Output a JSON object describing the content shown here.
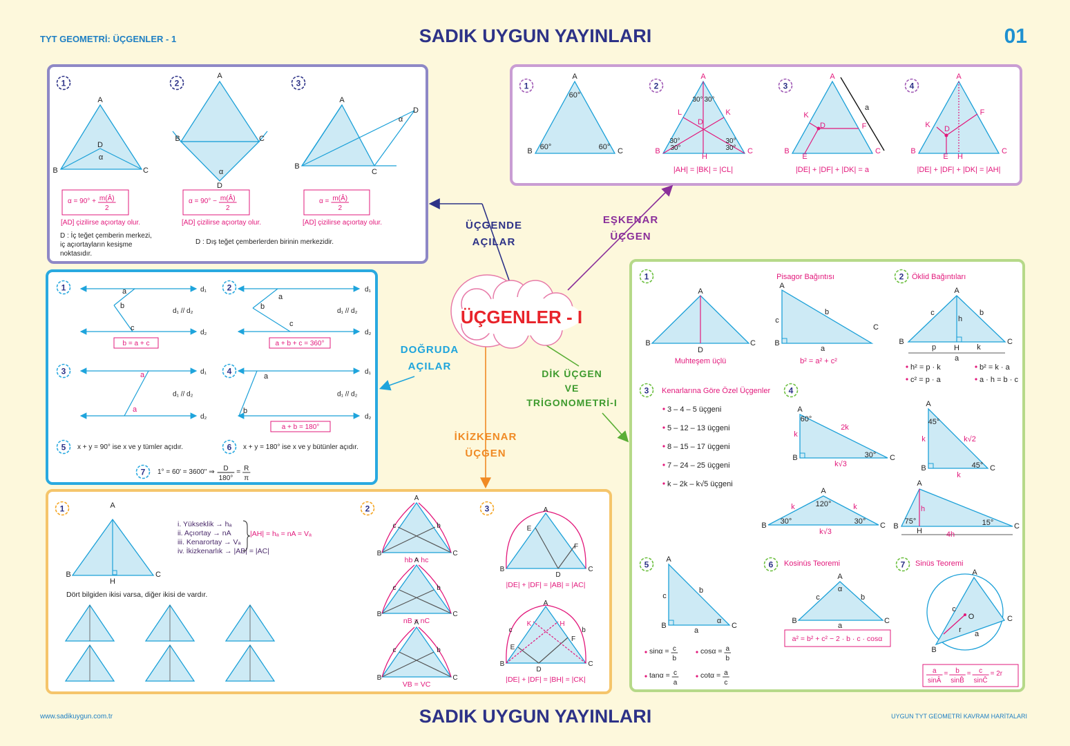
{
  "header": {
    "subject": "TYT GEOMETRİ: ÜÇGENLER - 1",
    "publisher": "SADIK  UYGUN  YAYINLARI",
    "page": "01"
  },
  "footer": {
    "website": "www.sadikuygun.com.tr",
    "publisher": "SADIK  UYGUN  YAYINLARI",
    "series": "UYGUN TYT GEOMETRİ KAVRAM HARİTALARI"
  },
  "hub": "ÜÇGENLER - I",
  "branches": {
    "angles": [
      "ÜÇGENDE",
      "AÇILAR"
    ],
    "equilateral": [
      "EŞKENAR",
      "ÜÇGEN"
    ],
    "lines": [
      "DOĞRUDA",
      "AÇILAR"
    ],
    "isosceles": [
      "İKİZKENAR",
      "ÜÇGEN"
    ],
    "right": [
      "DİK ÜÇGEN",
      "VE",
      "TRİGONOMETRİ-I"
    ]
  },
  "angles": {
    "items": [
      {
        "number": "1",
        "vertices": [
          "A",
          "B",
          "C",
          "D"
        ],
        "angle": "α",
        "lhs": "α = 90° +",
        "num": "m(Â)",
        "den": "2",
        "note": "[AD] çizilirse açıortay olur."
      },
      {
        "number": "2",
        "vertices": [
          "A",
          "B",
          "C",
          "D"
        ],
        "angle": "α",
        "lhs": "α = 90° −",
        "num": "m(Â)",
        "den": "2",
        "note": "[AD] çizilirse açıortay olur."
      },
      {
        "number": "3",
        "vertices": [
          "A",
          "B",
          "C",
          "D"
        ],
        "angle": "α",
        "lhs": "α =",
        "num": "m(Â)",
        "den": "2",
        "note": "[AD] çizilirse açıortay olur."
      }
    ],
    "desc1": [
      "D : İç teğet çemberin merkezi,",
      "iç açıortayların kesişme",
      "noktasıdır."
    ],
    "desc3": "D : Dış teğet çemberlerden birinin merkezidir."
  },
  "equilateral": {
    "items": [
      {
        "number": "1",
        "vertices": [
          "A",
          "B",
          "C"
        ],
        "angles": [
          "60°",
          "60°",
          "60°"
        ]
      },
      {
        "number": "2",
        "vertices": [
          "A",
          "B",
          "C",
          "L",
          "K",
          "D",
          "H"
        ],
        "angles": [
          "30°",
          "30°",
          "30°",
          "30°",
          "30°",
          "30°"
        ],
        "caption": "|AH| = |BK| = |CL|"
      },
      {
        "number": "3",
        "vertices": [
          "A",
          "B",
          "C",
          "K",
          "D",
          "F",
          "E"
        ],
        "side": "a",
        "caption": "|DE| + |DF| + |DK| = a"
      },
      {
        "number": "4",
        "vertices": [
          "A",
          "B",
          "C",
          "K",
          "D",
          "F",
          "E",
          "H"
        ],
        "caption": "|DE| + |DF| + |DK| = |AH|"
      }
    ]
  },
  "lines": {
    "items": [
      {
        "number": "1",
        "lines": [
          "d₁",
          "d₂"
        ],
        "parallel": "d₁ // d₂",
        "angles": [
          "a",
          "b",
          "c"
        ],
        "formula": "b = a + c"
      },
      {
        "number": "2",
        "lines": [
          "d₁",
          "d₂"
        ],
        "parallel": "d₁ // d₂",
        "angles": [
          "a",
          "b",
          "c"
        ],
        "formula": "a + b + c = 360°"
      },
      {
        "number": "3",
        "lines": [
          "d₁",
          "d₂"
        ],
        "parallel": "d₁ // d₂",
        "angles": [
          "a",
          "a"
        ]
      },
      {
        "number": "4",
        "lines": [
          "d₁",
          "d₂"
        ],
        "parallel": "d₁ // d₂",
        "angles": [
          "a",
          "b"
        ],
        "formula": "a + b = 180°"
      },
      {
        "number": "5",
        "text": "x + y = 90° ise x ve y tümler açıdır."
      },
      {
        "number": "6",
        "text": "x + y = 180° ise x ve y bütünler açıdır."
      },
      {
        "number": "7",
        "text": "1° = 60' = 3600'' ⇒",
        "f1": [
          "D",
          "180°"
        ],
        "eq": "=",
        "f2": [
          "R",
          "π"
        ]
      }
    ]
  },
  "isosceles": {
    "items": [
      {
        "number": "1",
        "vertices": [
          "A",
          "B",
          "C",
          "H"
        ],
        "properties": [
          "i. Yükseklik → hₐ",
          "ii. Açıortay → nA",
          "iii. Kenarortay → Vₐ",
          "iv. İkizkenarlık → |AB| = |AC|"
        ],
        "result": "|AH| = hₐ = nA = Vₐ",
        "note": "Dört bilgiden ikisi varsa, diğer ikisi de vardır."
      },
      {
        "number": "2",
        "vertices": [
          "A",
          "B",
          "C"
        ],
        "sides": [
          "c",
          "b"
        ],
        "captions": [
          "hb = hc",
          "nB = nC",
          "VB = VC"
        ]
      },
      {
        "number": "3",
        "vertices": [
          "A",
          "B",
          "C",
          "D",
          "E",
          "F",
          "K",
          "H"
        ],
        "sides": [
          "c",
          "b"
        ],
        "captions": [
          "|DE| + |DF| = |AB| = |AC|",
          "|DE| + |DF| = |BH| = |CK|"
        ]
      }
    ]
  },
  "right": {
    "item1": {
      "number": "1",
      "vertices": [
        "A",
        "B",
        "C",
        "D"
      ],
      "caption": "Muhteşem üçlü"
    },
    "pythagoras": {
      "title": "Pisagor Bağıntısı",
      "vertices": [
        "A",
        "B",
        "C"
      ],
      "sides": [
        "c",
        "b",
        "a"
      ],
      "formula": "b² = a² + c²"
    },
    "item2": {
      "number": "2",
      "title": "Öklid Bağıntıları",
      "vertices": [
        "A",
        "B",
        "C",
        "H"
      ],
      "sides": [
        "c",
        "h",
        "b",
        "p",
        "k",
        "a"
      ],
      "formulas": [
        "h² = p · k",
        "b² = k · a",
        "c² = p · a",
        "a · h = b · c"
      ]
    },
    "item3": {
      "number": "3",
      "title": "Kenarlarına Göre Özel Üçgenler",
      "list": [
        "3 – 4 – 5 üçgeni",
        "5 – 12 – 13 üçgeni",
        "8 – 15 – 17 üçgeni",
        "7 – 24 – 25 üçgeni",
        "k – 2k – k√5 üçgeni"
      ]
    },
    "item4": {
      "number": "4",
      "t1": {
        "vertices": [
          "A",
          "B",
          "C"
        ],
        "labels": [
          "60°",
          "2k",
          "k",
          "30°",
          "k√3"
        ]
      },
      "t2": {
        "vertices": [
          "A",
          "B",
          "C"
        ],
        "labels": [
          "45°",
          "k",
          "k√2",
          "45°",
          "k"
        ]
      },
      "t3": {
        "vertices": [
          "A",
          "B",
          "C"
        ],
        "labels": [
          "120°",
          "k",
          "k",
          "30°",
          "30°",
          "k√3"
        ]
      },
      "t4": {
        "vertices": [
          "A",
          "B",
          "C",
          "H"
        ],
        "labels": [
          "h",
          "75°",
          "15°",
          "4h"
        ]
      }
    },
    "item5": {
      "number": "5",
      "vertices": [
        "A",
        "B",
        "C"
      ],
      "sides": [
        "c",
        "b",
        "a"
      ],
      "angle": "α",
      "ratios": [
        {
          "lhs": "sinα =",
          "num": "c",
          "den": "b"
        },
        {
          "lhs": "cosα =",
          "num": "a",
          "den": "b"
        },
        {
          "lhs": "tanα =",
          "num": "c",
          "den": "a"
        },
        {
          "lhs": "cotα =",
          "num": "a",
          "den": "c"
        }
      ]
    },
    "item6": {
      "number": "6",
      "title": "Kosinüs Teoremi",
      "vertices": [
        "A",
        "B",
        "C"
      ],
      "sides": [
        "c",
        "b",
        "a"
      ],
      "angle": "α",
      "formula": "a² = b² + c² − 2 · b · c · cosα"
    },
    "item7": {
      "number": "7",
      "title": "Sinüs Teoremi",
      "vertices": [
        "A",
        "B",
        "C",
        "O"
      ],
      "labels": [
        "c",
        "r",
        "a"
      ],
      "fractions": [
        [
          "a",
          "sinÂ"
        ],
        [
          "b",
          "sinB̂"
        ],
        [
          "c",
          "sinĈ"
        ]
      ],
      "eq": "=",
      "tail": "= 2r"
    }
  }
}
